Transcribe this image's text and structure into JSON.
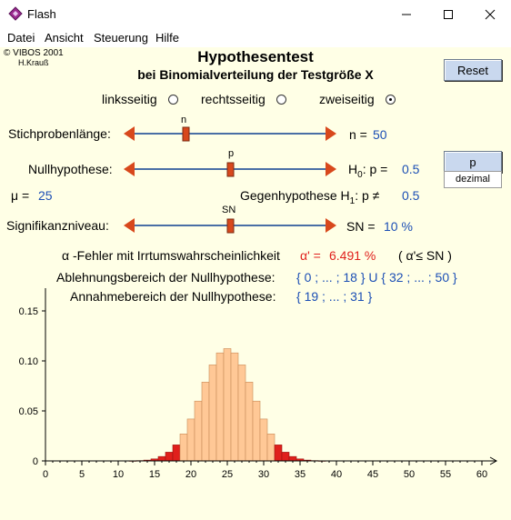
{
  "window": {
    "title": "Flash",
    "minimize_icon": "minimize-icon",
    "maximize_icon": "maximize-icon",
    "close_icon": "close-icon"
  },
  "menu": [
    "Datei",
    "Ansicht",
    "Steuerung",
    "Hilfe"
  ],
  "credits": {
    "line1": "© VIBOS 2001",
    "line2": "H.Krauß"
  },
  "heading": {
    "title": "Hypothesentest",
    "subtitle": "bei Binomialverteilung der Testgröße X"
  },
  "reset_label": "Reset",
  "test_type": {
    "options": [
      "linksseitig",
      "rechtsseitig",
      "zweiseitig"
    ],
    "selected": "zweiseitig"
  },
  "sample_size": {
    "label": "Stichprobenlänge:",
    "slider_tag": "n",
    "value_label": "n =",
    "value": "50"
  },
  "null_hypothesis": {
    "label": "Nullhypothese:",
    "slider_tag": "p",
    "h": "H",
    "sub": "0",
    "value_label": ":  p =",
    "value": "0.5"
  },
  "p_button": {
    "label": "p",
    "sub_label": "dezimal"
  },
  "mu": {
    "label": "μ =",
    "value": "25"
  },
  "alt_hypothesis": {
    "label": "Gegenhypothese",
    "h": "H",
    "sub": "1",
    "value_label": ":  p ≠",
    "value": "0.5"
  },
  "significance": {
    "label": "Signifikanzniveau:",
    "slider_tag": "SN",
    "value_label": "SN =",
    "value": "10 %"
  },
  "alpha_error": {
    "prefix": "α -Fehler mit Irrtumswahrscheinlichkeit",
    "alpha_label": "α' =",
    "alpha_value": "6.491 %",
    "condition": "( α'≤ SN )"
  },
  "rejection": {
    "label": "Ablehnungsbereich der Nullhypothese:",
    "value": "{ 0 ; ... ; 18 } U { 32 ; ... ; 50 }"
  },
  "acceptance": {
    "label": "Annahmebereich der Nullhypothese:",
    "value": "{ 19 ; ... ; 31 }"
  },
  "colors": {
    "accept": "#FFC896",
    "reject": "#E0201C",
    "slider_line": "#4A6FA5",
    "arrow": "#D8481C",
    "value_blue": "#1C4FB5"
  },
  "chart_data": {
    "type": "bar",
    "x_ticks": [
      "0",
      "5",
      "10",
      "15",
      "20",
      "25",
      "30",
      "35",
      "40",
      "45",
      "50",
      "55",
      "60"
    ],
    "y_ticks": [
      "0",
      "0.05",
      "0.10",
      "0.15"
    ],
    "xlim": [
      0,
      60
    ],
    "ylim": [
      0,
      0.17
    ],
    "n": 50,
    "p": 0.5,
    "rejection_ranges": [
      [
        0,
        18
      ],
      [
        32,
        50
      ]
    ],
    "x": [
      12,
      13,
      14,
      15,
      16,
      17,
      18,
      19,
      20,
      21,
      22,
      23,
      24,
      25,
      26,
      27,
      28,
      29,
      30,
      31,
      32,
      33,
      34,
      35,
      36,
      37,
      38
    ],
    "values": [
      0.0001,
      0.0003,
      0.0008,
      0.002,
      0.0044,
      0.0087,
      0.016,
      0.027,
      0.0419,
      0.0598,
      0.0788,
      0.096,
      0.108,
      0.1123,
      0.108,
      0.096,
      0.0788,
      0.0598,
      0.0419,
      0.027,
      0.016,
      0.0087,
      0.0044,
      0.002,
      0.0008,
      0.0003,
      0.0001
    ]
  }
}
